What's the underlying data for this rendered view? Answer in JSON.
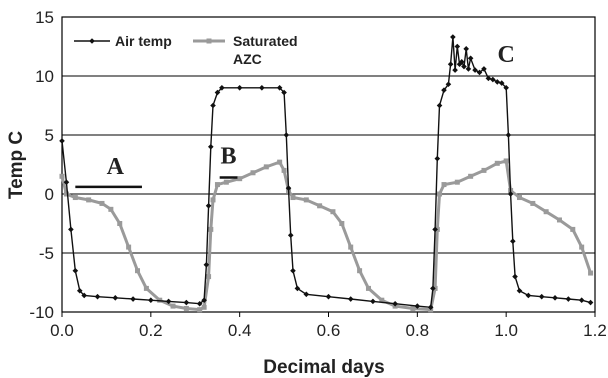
{
  "chart_data": {
    "type": "line",
    "title": "",
    "xlabel": "Decimal days",
    "ylabel": "Temp C",
    "xlim": [
      0.0,
      1.2
    ],
    "ylim": [
      -10,
      15
    ],
    "xticks": [
      0.0,
      0.2,
      0.4,
      0.6,
      0.8,
      1.0,
      1.2
    ],
    "xtick_labels": [
      "0.0",
      "0.2",
      "0.4",
      "0.6",
      "0.8",
      "1.0",
      "1.2"
    ],
    "yticks": [
      -10,
      -5,
      0,
      5,
      10,
      15
    ],
    "ytick_labels": [
      "-10",
      "-5",
      "0",
      "5",
      "10",
      "15"
    ],
    "grid": "horizontal",
    "legend_position": "top-left",
    "series": [
      {
        "name": "Air temp",
        "color": "#111111",
        "marker": "diamond",
        "points": [
          [
            0.0,
            4.5
          ],
          [
            0.01,
            1.0
          ],
          [
            0.02,
            -3.0
          ],
          [
            0.03,
            -6.5
          ],
          [
            0.04,
            -8.2
          ],
          [
            0.05,
            -8.6
          ],
          [
            0.08,
            -8.7
          ],
          [
            0.12,
            -8.8
          ],
          [
            0.16,
            -8.9
          ],
          [
            0.2,
            -9.0
          ],
          [
            0.24,
            -9.1
          ],
          [
            0.28,
            -9.2
          ],
          [
            0.31,
            -9.3
          ],
          [
            0.32,
            -9.0
          ],
          [
            0.325,
            -6.0
          ],
          [
            0.33,
            -1.0
          ],
          [
            0.335,
            4.0
          ],
          [
            0.34,
            7.5
          ],
          [
            0.35,
            8.6
          ],
          [
            0.36,
            9.0
          ],
          [
            0.4,
            9.0
          ],
          [
            0.45,
            9.0
          ],
          [
            0.49,
            9.0
          ],
          [
            0.5,
            8.6
          ],
          [
            0.505,
            5.0
          ],
          [
            0.51,
            0.5
          ],
          [
            0.515,
            -3.5
          ],
          [
            0.52,
            -6.5
          ],
          [
            0.53,
            -8.0
          ],
          [
            0.55,
            -8.5
          ],
          [
            0.6,
            -8.7
          ],
          [
            0.65,
            -8.9
          ],
          [
            0.7,
            -9.1
          ],
          [
            0.75,
            -9.3
          ],
          [
            0.8,
            -9.5
          ],
          [
            0.83,
            -9.6
          ],
          [
            0.835,
            -8.0
          ],
          [
            0.84,
            -3.0
          ],
          [
            0.845,
            3.0
          ],
          [
            0.85,
            7.5
          ],
          [
            0.86,
            8.8
          ],
          [
            0.87,
            9.3
          ],
          [
            0.875,
            11.0
          ],
          [
            0.88,
            13.3
          ],
          [
            0.885,
            10.5
          ],
          [
            0.89,
            12.5
          ],
          [
            0.895,
            11.0
          ],
          [
            0.9,
            11.2
          ],
          [
            0.905,
            10.8
          ],
          [
            0.91,
            12.3
          ],
          [
            0.915,
            10.6
          ],
          [
            0.92,
            11.5
          ],
          [
            0.93,
            10.5
          ],
          [
            0.94,
            10.3
          ],
          [
            0.95,
            10.6
          ],
          [
            0.96,
            9.8
          ],
          [
            0.97,
            9.7
          ],
          [
            0.98,
            9.5
          ],
          [
            0.99,
            9.4
          ],
          [
            1.0,
            9.0
          ],
          [
            1.005,
            5.0
          ],
          [
            1.01,
            0.0
          ],
          [
            1.015,
            -4.0
          ],
          [
            1.02,
            -7.0
          ],
          [
            1.03,
            -8.2
          ],
          [
            1.05,
            -8.6
          ],
          [
            1.08,
            -8.7
          ],
          [
            1.11,
            -8.8
          ],
          [
            1.14,
            -8.9
          ],
          [
            1.17,
            -9.0
          ],
          [
            1.19,
            -9.2
          ]
        ]
      },
      {
        "name": "Saturated AZC",
        "color": "#9a9a9a",
        "marker": "square",
        "points": [
          [
            0.0,
            1.5
          ],
          [
            0.01,
            0.0
          ],
          [
            0.03,
            -0.3
          ],
          [
            0.06,
            -0.5
          ],
          [
            0.09,
            -0.8
          ],
          [
            0.11,
            -1.3
          ],
          [
            0.13,
            -2.5
          ],
          [
            0.15,
            -4.5
          ],
          [
            0.17,
            -6.5
          ],
          [
            0.19,
            -8.0
          ],
          [
            0.22,
            -9.0
          ],
          [
            0.25,
            -9.5
          ],
          [
            0.28,
            -9.7
          ],
          [
            0.31,
            -9.8
          ],
          [
            0.32,
            -9.6
          ],
          [
            0.33,
            -7.0
          ],
          [
            0.335,
            -3.0
          ],
          [
            0.34,
            -0.5
          ],
          [
            0.35,
            0.8
          ],
          [
            0.37,
            1.0
          ],
          [
            0.4,
            1.3
          ],
          [
            0.43,
            1.8
          ],
          [
            0.46,
            2.3
          ],
          [
            0.49,
            2.7
          ],
          [
            0.5,
            2.0
          ],
          [
            0.51,
            0.3
          ],
          [
            0.52,
            -0.3
          ],
          [
            0.55,
            -0.5
          ],
          [
            0.58,
            -1.0
          ],
          [
            0.61,
            -1.5
          ],
          [
            0.63,
            -2.5
          ],
          [
            0.65,
            -4.5
          ],
          [
            0.67,
            -6.5
          ],
          [
            0.69,
            -8.0
          ],
          [
            0.72,
            -9.0
          ],
          [
            0.75,
            -9.5
          ],
          [
            0.79,
            -9.7
          ],
          [
            0.83,
            -9.8
          ],
          [
            0.84,
            -8.0
          ],
          [
            0.845,
            -3.0
          ],
          [
            0.85,
            0.0
          ],
          [
            0.86,
            0.8
          ],
          [
            0.89,
            1.0
          ],
          [
            0.92,
            1.5
          ],
          [
            0.95,
            2.0
          ],
          [
            0.98,
            2.6
          ],
          [
            1.0,
            2.8
          ],
          [
            1.01,
            0.3
          ],
          [
            1.03,
            -0.3
          ],
          [
            1.06,
            -0.8
          ],
          [
            1.09,
            -1.5
          ],
          [
            1.12,
            -2.2
          ],
          [
            1.15,
            -3.0
          ],
          [
            1.17,
            -4.5
          ],
          [
            1.19,
            -6.7
          ]
        ]
      }
    ],
    "annotations": [
      {
        "text": "A",
        "x": 0.12,
        "y": 1.7,
        "underline_from": 0.03,
        "underline_to": 0.18,
        "underline_y": 0.6
      },
      {
        "text": "B",
        "x": 0.375,
        "y": 2.6,
        "underline_from": 0.355,
        "underline_to": 0.395,
        "underline_y": 1.4
      },
      {
        "text": "C",
        "x": 1.0,
        "y": 11.2
      }
    ]
  }
}
